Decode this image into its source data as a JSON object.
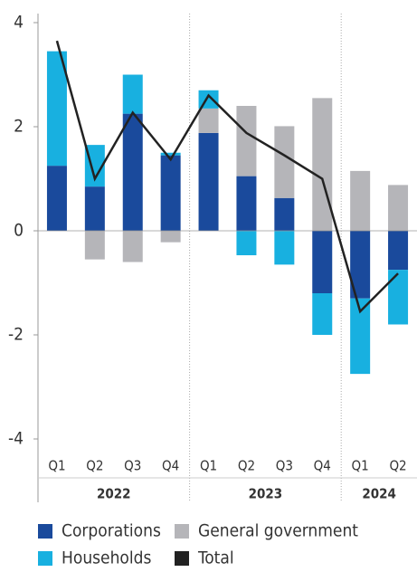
{
  "chart_data": {
    "type": "bar",
    "stacked": true,
    "categories": [
      "Q1",
      "Q2",
      "Q3",
      "Q4",
      "Q1",
      "Q2",
      "Q3",
      "Q4",
      "Q1",
      "Q2"
    ],
    "groups": [
      {
        "name": "2022",
        "count": 4
      },
      {
        "name": "2023",
        "count": 4
      },
      {
        "name": "2024",
        "count": 2
      }
    ],
    "series": [
      {
        "name": "Corporations",
        "color": "#1a4a9c",
        "values": [
          1.25,
          0.85,
          2.25,
          1.45,
          1.88,
          1.05,
          0.63,
          -1.2,
          -1.3,
          -0.75
        ]
      },
      {
        "name": "General government",
        "color": "#b5b5b9",
        "values": [
          0,
          -0.55,
          -0.6,
          -0.22,
          0.47,
          1.35,
          1.38,
          2.55,
          1.15,
          0.88
        ]
      },
      {
        "name": "Households",
        "color": "#18b0e0",
        "values": [
          2.2,
          0.8,
          0.75,
          0.05,
          0.35,
          -0.47,
          -0.65,
          -0.8,
          -1.45,
          -1.05
        ]
      },
      {
        "name": "Total",
        "type": "line",
        "color": "#222222",
        "values": [
          3.65,
          1.0,
          2.27,
          1.37,
          2.6,
          1.88,
          1.45,
          1.0,
          -1.55,
          -0.82
        ]
      }
    ],
    "ylim": [
      -4,
      4
    ],
    "yticks": [
      -4,
      -2,
      0,
      2,
      4
    ],
    "grid": false
  }
}
